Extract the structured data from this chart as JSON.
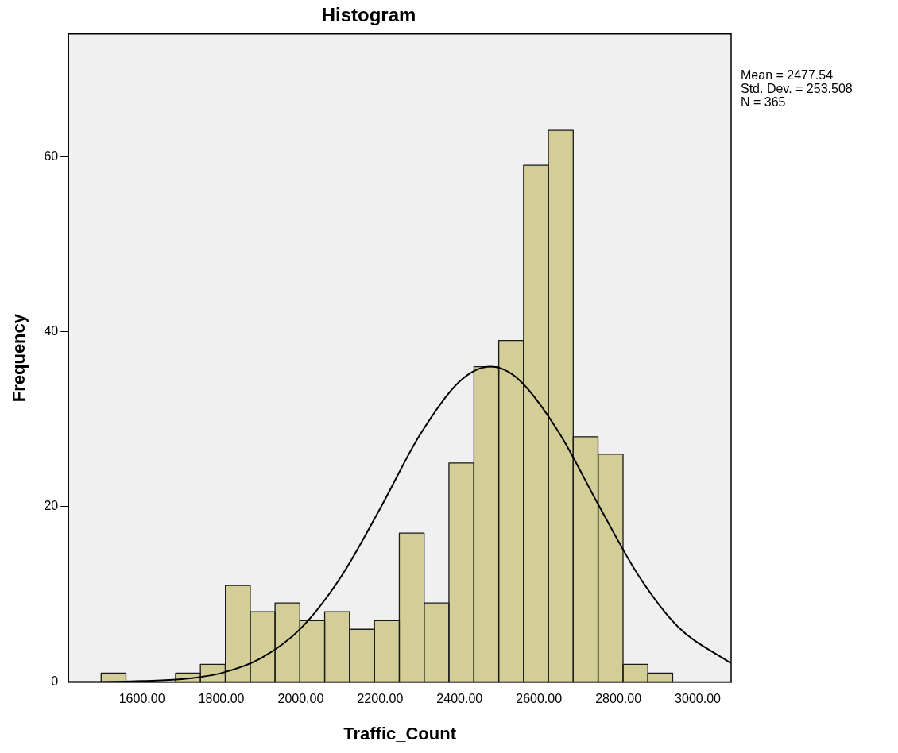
{
  "chart_data": {
    "type": "histogram",
    "title": "Histogram",
    "xlabel": "Traffic_Count",
    "ylabel": "Frequency",
    "bins": [
      1497,
      1560,
      1622,
      1685,
      1747,
      1810,
      1873,
      1935,
      1998,
      2060,
      2123,
      2186,
      2248,
      2311,
      2373,
      2436,
      2499,
      2561,
      2624,
      2686,
      2749,
      2812,
      2874,
      2937
    ],
    "values": [
      1,
      0,
      0,
      1,
      2,
      11,
      8,
      9,
      7,
      8,
      6,
      7,
      17,
      9,
      25,
      36,
      39,
      59,
      63,
      28,
      26,
      2,
      1
    ],
    "color": "#d3ce97",
    "series": [
      {
        "type": "line",
        "color": "#000000",
        "marker": "none",
        "x": [
          1415,
          1500,
          1600,
          1700,
          1800,
          1900,
          2000,
          2100,
          2200,
          2300,
          2400,
          2477.54,
          2550,
          2650,
          2750,
          2850,
          2950,
          3084
        ],
        "values": [
          0.0,
          0.0,
          0.1,
          0.3,
          1.0,
          2.7,
          6.1,
          11.9,
          19.8,
          28.2,
          34.3,
          36.0,
          34.5,
          28.5,
          20.2,
          12.2,
          6.3,
          2.1
        ]
      }
    ],
    "xlim": [
      1415,
      3084
    ],
    "xticks": [
      {
        "value": 1600,
        "label": "1600.00"
      },
      {
        "value": 1800,
        "label": "1800.00"
      },
      {
        "value": 2000,
        "label": "2000.00"
      },
      {
        "value": 2200,
        "label": "2200.00"
      },
      {
        "value": 2400,
        "label": "2400.00"
      },
      {
        "value": 2600,
        "label": "2600.00"
      },
      {
        "value": 2800,
        "label": "2800.00"
      },
      {
        "value": 3000,
        "label": "3000.00"
      }
    ],
    "ylim": [
      0,
      74
    ],
    "yticks": [
      0,
      20,
      40,
      60
    ],
    "annotations": [
      "Mean = 2477.54",
      "Std. Dev. = 253.508",
      "N = 365"
    ]
  }
}
